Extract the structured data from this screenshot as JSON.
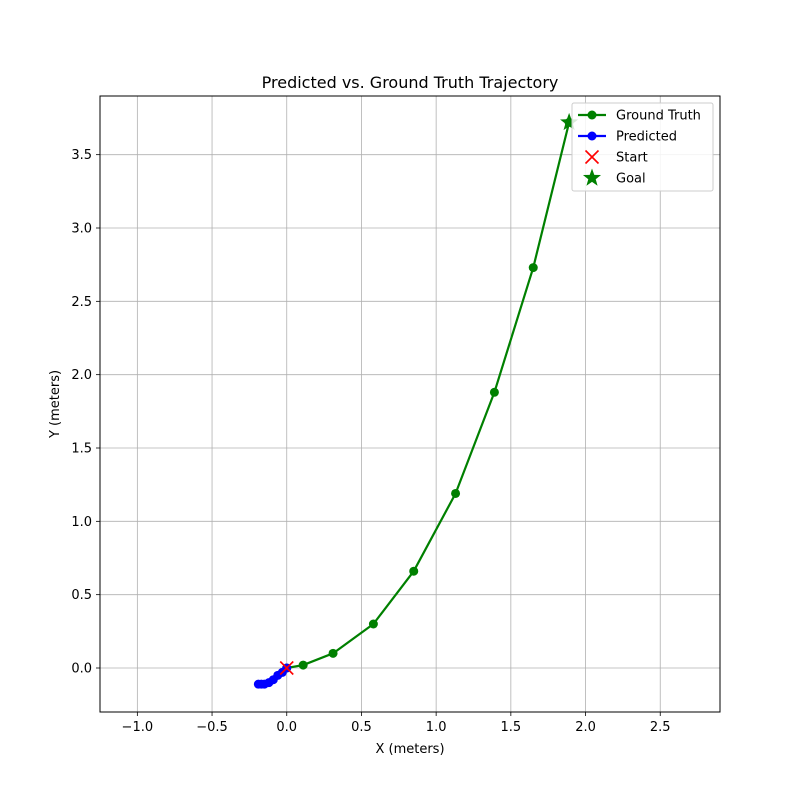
{
  "chart_data": {
    "type": "line",
    "title": "Predicted vs. Ground Truth Trajectory",
    "xlabel": "X (meters)",
    "ylabel": "Y (meters)",
    "xlim": [
      -1.25,
      2.9
    ],
    "ylim": [
      -0.3,
      3.9
    ],
    "xticks": [
      -1.0,
      -0.5,
      0.0,
      0.5,
      1.0,
      1.5,
      2.0,
      2.5
    ],
    "xtick_labels": [
      "−1.0",
      "−0.5",
      "0.0",
      "0.5",
      "1.0",
      "1.5",
      "2.0",
      "2.5"
    ],
    "yticks": [
      0.0,
      0.5,
      1.0,
      1.5,
      2.0,
      2.5,
      3.0,
      3.5
    ],
    "ytick_labels": [
      "0.0",
      "0.5",
      "1.0",
      "1.5",
      "2.0",
      "2.5",
      "3.0",
      "3.5"
    ],
    "grid": true,
    "legend_position": "top-right",
    "series": [
      {
        "name": "Ground Truth",
        "kind": "line-marker",
        "color": "#008000",
        "x": [
          0.0,
          0.11,
          0.31,
          0.58,
          0.85,
          1.13,
          1.39,
          1.65,
          1.89
        ],
        "y": [
          0.0,
          0.02,
          0.1,
          0.3,
          0.66,
          1.19,
          1.88,
          2.73,
          3.72
        ]
      },
      {
        "name": "Predicted",
        "kind": "line-marker",
        "color": "#0000ff",
        "x": [
          0.0,
          -0.03,
          -0.06,
          -0.09,
          -0.12,
          -0.15,
          -0.17,
          -0.19
        ],
        "y": [
          0.0,
          -0.03,
          -0.05,
          -0.08,
          -0.1,
          -0.11,
          -0.11,
          -0.11
        ]
      },
      {
        "name": "Start",
        "kind": "x-marker",
        "color": "#ff0000",
        "x": [
          0.0
        ],
        "y": [
          0.0
        ]
      },
      {
        "name": "Goal",
        "kind": "star-marker",
        "color": "#008000",
        "x": [
          1.89
        ],
        "y": [
          3.72
        ]
      }
    ]
  }
}
